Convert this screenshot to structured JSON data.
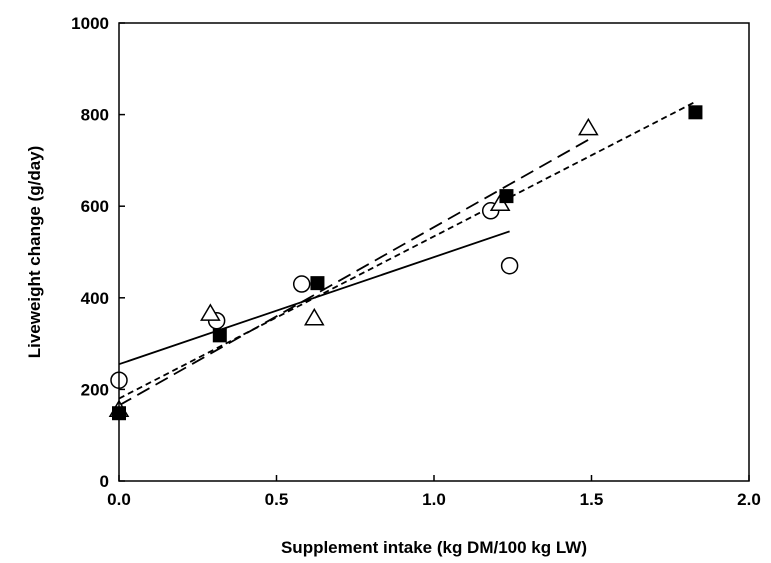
{
  "chart_data": {
    "type": "scatter",
    "title": "",
    "xlabel": "Supplement intake (kg DM/100 kg LW)",
    "ylabel": "Liveweight change (g/day)",
    "xlim": [
      0,
      2.0
    ],
    "ylim": [
      0,
      1000
    ],
    "x_ticks": [
      "0.0",
      "0.5",
      "1.0",
      "1.5",
      "2.0"
    ],
    "y_ticks": [
      "0",
      "200",
      "400",
      "600",
      "800",
      "1000"
    ],
    "grid": false,
    "legend": "none",
    "series": [
      {
        "marker": "open-circle",
        "line": "solid",
        "points": [
          [
            0.0,
            220
          ],
          [
            0.31,
            350
          ],
          [
            0.58,
            430
          ],
          [
            1.18,
            590
          ],
          [
            1.24,
            470
          ]
        ],
        "fit": [
          [
            0.0,
            255
          ],
          [
            1.24,
            545
          ]
        ]
      },
      {
        "marker": "open-triangle",
        "line": "long-dash",
        "points": [
          [
            0.0,
            155
          ],
          [
            0.29,
            365
          ],
          [
            0.62,
            355
          ],
          [
            1.21,
            605
          ],
          [
            1.49,
            770
          ]
        ],
        "fit": [
          [
            0.0,
            165
          ],
          [
            1.49,
            745
          ]
        ]
      },
      {
        "marker": "filled-square",
        "line": "short-dash",
        "points": [
          [
            0.0,
            148
          ],
          [
            0.32,
            318
          ],
          [
            0.63,
            432
          ],
          [
            1.23,
            622
          ],
          [
            1.83,
            805
          ]
        ],
        "fit": [
          [
            0.0,
            180
          ],
          [
            1.83,
            828
          ]
        ]
      }
    ]
  }
}
